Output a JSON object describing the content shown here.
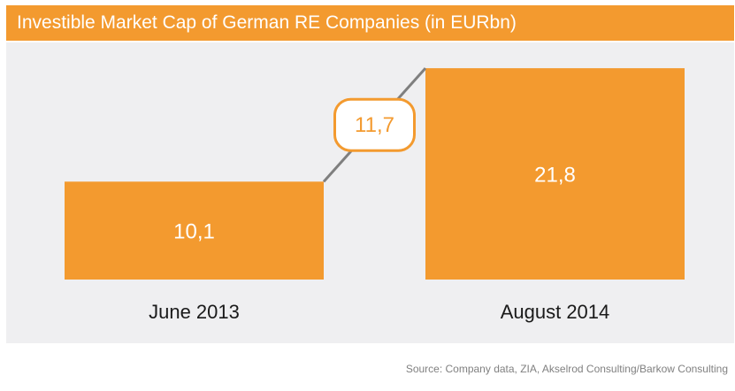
{
  "title": "Investible Market Cap of German RE Companies (in EURbn)",
  "source": "Source: Company data, ZIA, Akselrod Consulting/Barkow Consulting",
  "colors": {
    "bar": "#f39a2f",
    "title_bar": "#f39a2f",
    "panel_bg": "#efeff1",
    "connector": "#7f7f7f",
    "text_on_bar": "#ffffff",
    "axis_text": "#1a1a1a"
  },
  "chart_data": {
    "type": "bar",
    "title": "Investible Market Cap of German RE Companies (in EURbn)",
    "categories": [
      "June 2013",
      "August 2014"
    ],
    "values": [
      10.1,
      21.8
    ],
    "value_labels": [
      "10,1",
      "21,8"
    ],
    "difference": 11.7,
    "difference_label": "11,7",
    "xlabel": "",
    "ylabel": "",
    "ylim": [
      0,
      24
    ],
    "grid": false,
    "legend": "none"
  }
}
